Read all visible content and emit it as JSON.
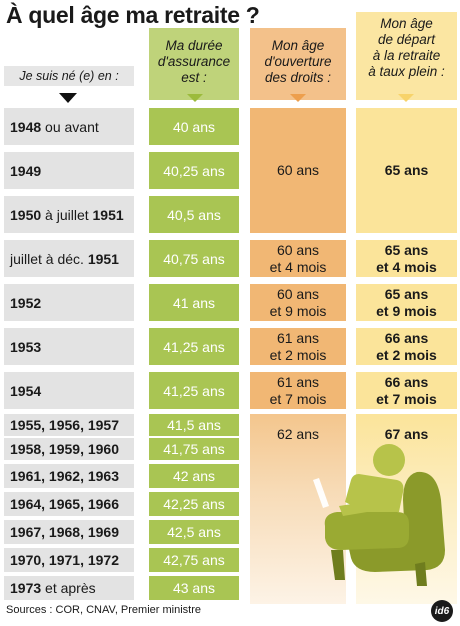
{
  "title": "À quel âge ma retraite ?",
  "headers": {
    "born": "Je suis né (e) en :",
    "duration": "Ma durée\nd'assurance\nest :",
    "opening": "Mon âge\nd'ouverture\ndes droits :",
    "full_rate": "Mon âge\nde départ\nà la retraite\nà taux plein :"
  },
  "rows": [
    {
      "bold": "1948",
      "rest": " ou avant",
      "duration": "40 ans"
    },
    {
      "bold": "1949",
      "rest": "",
      "duration": "40,25 ans"
    },
    {
      "bold": "1950",
      "rest": " à juillet ",
      "bold2": "1951",
      "duration": "40,5 ans"
    },
    {
      "bold": "",
      "rest": "juillet à déc. ",
      "bold2": "1951",
      "duration": "40,75 ans"
    },
    {
      "bold": "1952",
      "rest": "",
      "duration": "41 ans"
    },
    {
      "bold": "1953",
      "rest": "",
      "duration": "41,25 ans"
    },
    {
      "bold": "1954",
      "rest": "",
      "duration": "41,25 ans"
    },
    {
      "bold": "1955, 1956, 1957",
      "rest": "",
      "duration": "41,5 ans"
    },
    {
      "bold": "1958, 1959, 1960",
      "rest": "",
      "duration": "41,75 ans"
    },
    {
      "bold": "1961, 1962, 1963",
      "rest": "",
      "duration": "42 ans"
    },
    {
      "bold": "1964, 1965, 1966",
      "rest": "",
      "duration": "42,25 ans"
    },
    {
      "bold": "1967, 1968, 1969",
      "rest": "",
      "duration": "42,5 ans"
    },
    {
      "bold": "1970, 1971, 1972",
      "rest": "",
      "duration": "42,75 ans"
    },
    {
      "bold": "1973",
      "rest": " et après",
      "duration": "43 ans"
    }
  ],
  "opening_ages": [
    {
      "text": "60 ans"
    },
    {
      "text": "60 ans\net 4 mois"
    },
    {
      "text": "60 ans\net 9 mois"
    },
    {
      "text": "61 ans\net 2 mois"
    },
    {
      "text": "61 ans\net 7 mois"
    },
    {
      "text": "62 ans"
    }
  ],
  "full_rate_ages": [
    {
      "text": "65 ans"
    },
    {
      "text": "65 ans\net 4 mois"
    },
    {
      "text": "65 ans\net 9 mois"
    },
    {
      "text": "66 ans\net 2 mois"
    },
    {
      "text": "66 ans\net 7 mois"
    },
    {
      "text": "67 ans"
    }
  ],
  "sources": "Sources : COR, CNAV, Premier ministre",
  "logo": "id6",
  "colors": {
    "green": "#a9c553",
    "orange": "#f1b774",
    "yellow": "#fbe49a",
    "grey": "#e3e3e3"
  },
  "illustration": "armchair-icon"
}
